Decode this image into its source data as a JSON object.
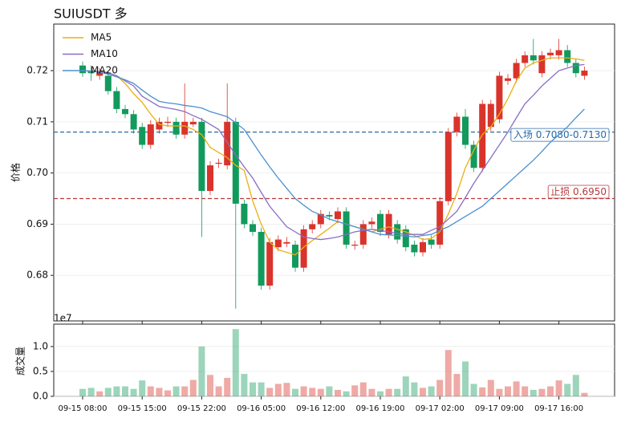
{
  "chart_data": [
    {
      "type": "candlestick",
      "title": "SUIUSDT  多",
      "ylabel": "价格",
      "x": [
        "09-15 08:00",
        "09-15 09:00",
        "09-15 10:00",
        "09-15 11:00",
        "09-15 12:00",
        "09-15 13:00",
        "09-15 14:00",
        "09-15 15:00",
        "09-15 16:00",
        "09-15 17:00",
        "09-15 18:00",
        "09-15 19:00",
        "09-15 20:00",
        "09-15 21:00",
        "09-15 22:00",
        "09-15 23:00",
        "09-16 00:00",
        "09-16 01:00",
        "09-16 02:00",
        "09-16 03:00",
        "09-16 04:00",
        "09-16 05:00",
        "09-16 06:00",
        "09-16 07:00",
        "09-16 08:00",
        "09-16 09:00",
        "09-16 10:00",
        "09-16 11:00",
        "09-16 12:00",
        "09-16 13:00",
        "09-16 14:00",
        "09-16 15:00",
        "09-16 16:00",
        "09-16 17:00",
        "09-16 18:00",
        "09-16 19:00",
        "09-16 20:00",
        "09-16 21:00",
        "09-16 22:00",
        "09-16 23:00",
        "09-17 00:00",
        "09-17 01:00",
        "09-17 02:00",
        "09-17 03:00",
        "09-17 04:00",
        "09-17 05:00",
        "09-17 06:00",
        "09-17 07:00",
        "09-17 08:00",
        "09-17 09:00",
        "09-17 10:00",
        "09-17 11:00",
        "09-17 12:00",
        "09-17 13:00",
        "09-17 14:00",
        "09-17 15:00",
        "09-17 16:00",
        "09-17 17:00",
        "09-17 18:00",
        "09-17 19:00"
      ],
      "open": [
        0.721,
        0.72,
        0.719,
        0.719,
        0.716,
        0.7125,
        0.7115,
        0.709,
        0.7055,
        0.7085,
        0.7098,
        0.71,
        0.7075,
        0.7095,
        0.71,
        0.6965,
        0.7018,
        0.7015,
        0.71,
        0.694,
        0.69,
        0.6885,
        0.678,
        0.6855,
        0.6862,
        0.686,
        0.6815,
        0.689,
        0.69,
        0.6918,
        0.691,
        0.6925,
        0.6858,
        0.686,
        0.69,
        0.692,
        0.688,
        0.69,
        0.689,
        0.686,
        0.6845,
        0.687,
        0.686,
        0.6945,
        0.708,
        0.711,
        0.7055,
        0.701,
        0.709,
        0.7105,
        0.718,
        0.7185,
        0.7215,
        0.723,
        0.7195,
        0.723,
        0.723,
        0.724,
        0.7215,
        0.719
      ],
      "high": [
        0.7218,
        0.721,
        0.7205,
        0.7198,
        0.7168,
        0.7133,
        0.7123,
        0.7098,
        0.7103,
        0.7108,
        0.711,
        0.7108,
        0.7175,
        0.7108,
        0.7108,
        0.7023,
        0.7028,
        0.7175,
        0.7108,
        0.6948,
        0.6908,
        0.6893,
        0.6873,
        0.6878,
        0.6875,
        0.6868,
        0.6898,
        0.6908,
        0.6928,
        0.6925,
        0.6933,
        0.6933,
        0.6868,
        0.6908,
        0.6913,
        0.6928,
        0.6928,
        0.6908,
        0.6898,
        0.6868,
        0.6873,
        0.6878,
        0.6953,
        0.7088,
        0.7118,
        0.7125,
        0.7063,
        0.7143,
        0.7143,
        0.7198,
        0.7193,
        0.7223,
        0.7238,
        0.7262,
        0.7238,
        0.7243,
        0.7262,
        0.725,
        0.7223,
        0.7208
      ],
      "low": [
        0.7188,
        0.718,
        0.7182,
        0.7153,
        0.7117,
        0.7107,
        0.7077,
        0.7047,
        0.7047,
        0.7077,
        0.709,
        0.7067,
        0.7067,
        0.709,
        0.6875,
        0.6957,
        0.701,
        0.7007,
        0.6735,
        0.6892,
        0.6877,
        0.6772,
        0.6772,
        0.6847,
        0.6855,
        0.6807,
        0.6807,
        0.6882,
        0.6892,
        0.6908,
        0.6902,
        0.6852,
        0.685,
        0.6852,
        0.6892,
        0.6877,
        0.6872,
        0.6862,
        0.6847,
        0.6837,
        0.6837,
        0.6852,
        0.6852,
        0.6937,
        0.7072,
        0.7047,
        0.7002,
        0.7002,
        0.7082,
        0.7097,
        0.7172,
        0.7177,
        0.7207,
        0.7212,
        0.7187,
        0.7222,
        0.7222,
        0.7207,
        0.7187,
        0.7182
      ],
      "close": [
        0.7195,
        0.7195,
        0.7198,
        0.716,
        0.7125,
        0.7115,
        0.7085,
        0.7055,
        0.7095,
        0.71,
        0.71,
        0.7075,
        0.71,
        0.71,
        0.6965,
        0.7015,
        0.702,
        0.71,
        0.694,
        0.69,
        0.6885,
        0.678,
        0.6865,
        0.687,
        0.6865,
        0.6815,
        0.689,
        0.69,
        0.692,
        0.6915,
        0.6925,
        0.686,
        0.686,
        0.69,
        0.6905,
        0.6885,
        0.692,
        0.687,
        0.6855,
        0.6845,
        0.6865,
        0.686,
        0.6945,
        0.708,
        0.711,
        0.7055,
        0.701,
        0.7135,
        0.7135,
        0.719,
        0.7185,
        0.7215,
        0.723,
        0.722,
        0.723,
        0.7235,
        0.724,
        0.7215,
        0.7195,
        0.72
      ],
      "up_color": "#d9342b",
      "down_color": "#129a5c",
      "series": [
        {
          "name": "MA5",
          "color": "#e8b010",
          "values": [
            0.72,
            0.7199,
            0.7198,
            0.7196,
            0.719,
            0.7175,
            0.7155,
            0.7138,
            0.7115,
            0.7095,
            0.7092,
            0.7092,
            0.7092,
            0.7085,
            0.7075,
            0.705,
            0.704,
            0.703,
            0.7015,
            0.7005,
            0.6945,
            0.69,
            0.6865,
            0.685,
            0.6845,
            0.684,
            0.6855,
            0.6868,
            0.688,
            0.6892,
            0.6905,
            0.69,
            0.6895,
            0.689,
            0.6885,
            0.689,
            0.6895,
            0.689,
            0.6885,
            0.6878,
            0.687,
            0.6872,
            0.6885,
            0.692,
            0.696,
            0.701,
            0.7045,
            0.7075,
            0.709,
            0.7115,
            0.7145,
            0.718,
            0.7205,
            0.7215,
            0.722,
            0.7225,
            0.7225,
            0.7225,
            0.7223,
            0.722
          ]
        },
        {
          "name": "MA10",
          "color": "#8a6cc4",
          "values": [
            0.72,
            0.7199,
            0.7198,
            0.7196,
            0.719,
            0.718,
            0.717,
            0.715,
            0.714,
            0.713,
            0.7127,
            0.7124,
            0.712,
            0.7112,
            0.7105,
            0.7095,
            0.7085,
            0.706,
            0.7035,
            0.7012,
            0.699,
            0.6962,
            0.6935,
            0.6915,
            0.6895,
            0.6885,
            0.6875,
            0.6872,
            0.687,
            0.6872,
            0.6875,
            0.688,
            0.6885,
            0.6888,
            0.689,
            0.6888,
            0.6885,
            0.6882,
            0.688,
            0.688,
            0.688,
            0.6888,
            0.6895,
            0.691,
            0.6925,
            0.6952,
            0.698,
            0.7005,
            0.703,
            0.7055,
            0.708,
            0.7108,
            0.7135,
            0.7152,
            0.717,
            0.7185,
            0.72,
            0.7205,
            0.721,
            0.7212
          ]
        },
        {
          "name": "MA20",
          "color": "#4a90d0",
          "values": [
            0.72,
            0.7199,
            0.7197,
            0.7193,
            0.7188,
            0.7182,
            0.7175,
            0.7162,
            0.715,
            0.714,
            0.7137,
            0.7135,
            0.7132,
            0.713,
            0.7127,
            0.712,
            0.7115,
            0.711,
            0.7098,
            0.7085,
            0.706,
            0.7035,
            0.7012,
            0.699,
            0.697,
            0.695,
            0.6937,
            0.6925,
            0.6918,
            0.691,
            0.6905,
            0.69,
            0.6895,
            0.689,
            0.6885,
            0.688,
            0.6879,
            0.6878,
            0.6877,
            0.6875,
            0.6878,
            0.688,
            0.6888,
            0.6895,
            0.6905,
            0.6915,
            0.6925,
            0.6935,
            0.695,
            0.6965,
            0.698,
            0.6995,
            0.701,
            0.7025,
            0.7042,
            0.706,
            0.7075,
            0.709,
            0.7108,
            0.7125
          ]
        }
      ],
      "hlines": [
        {
          "value": 0.708,
          "color": "#2a6aa6",
          "label": "入场 0.7080-0.7130"
        },
        {
          "value": 0.695,
          "color": "#b8383a",
          "label": "止损 0.6950"
        }
      ],
      "ylim": [
        0.6711,
        0.7291
      ],
      "yticks": [
        0.68,
        0.69,
        {
          "value": 0.7,
          "label": "0.70"
        },
        0.71,
        0.72
      ],
      "legend": "upper left",
      "grid": true
    },
    {
      "type": "bar",
      "ylabel": "成交量",
      "offset_text": "1e7",
      "values": [
        0.15,
        0.17,
        0.1,
        0.17,
        0.2,
        0.2,
        0.15,
        0.32,
        0.2,
        0.17,
        0.12,
        0.2,
        0.2,
        0.33,
        1.0,
        0.43,
        0.2,
        0.37,
        1.35,
        0.45,
        0.28,
        0.28,
        0.17,
        0.25,
        0.27,
        0.15,
        0.2,
        0.17,
        0.15,
        0.2,
        0.13,
        0.1,
        0.22,
        0.28,
        0.15,
        0.1,
        0.15,
        0.15,
        0.4,
        0.28,
        0.17,
        0.2,
        0.33,
        0.93,
        0.45,
        0.7,
        0.25,
        0.18,
        0.33,
        0.15,
        0.2,
        0.3,
        0.2,
        0.13,
        0.15,
        0.2,
        0.32,
        0.25,
        0.43,
        0.07
      ],
      "ylim": [
        0,
        1.45
      ],
      "yticks": [
        {
          "value": 0,
          "label": "0.0"
        },
        0.5,
        {
          "value": 1,
          "label": "1.0"
        }
      ],
      "xticks": [
        "09-15 08:00",
        "09-15 15:00",
        "09-15 22:00",
        "09-16 05:00",
        "09-16 12:00",
        "09-16 19:00",
        "09-17 02:00",
        "09-17 09:00",
        "09-17 16:00"
      ],
      "grid": true
    }
  ]
}
